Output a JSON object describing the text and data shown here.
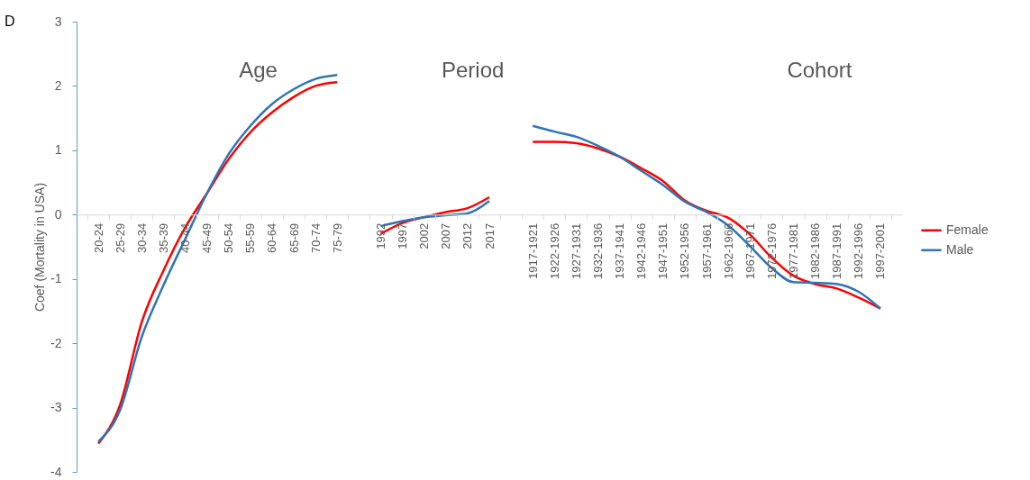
{
  "chart_data": {
    "type": "line",
    "ylabel": "Coef (Mortality in USA)",
    "categories": [
      "20-24",
      "25-29",
      "30-34",
      "35-39",
      "40-44",
      "45-49",
      "50-54",
      "55-59",
      "60-64",
      "65-69",
      "70-74",
      "75-79",
      null,
      "1992",
      "1997",
      "2002",
      "2007",
      "2012",
      "2017",
      null,
      "1917-1921",
      "1922-1926",
      "1927-1931",
      "1932-1936",
      "1937-1941",
      "1942-1946",
      "1947-1951",
      "1952-1956",
      "1957-1961",
      "1962-1966",
      "1967-1971",
      "1972-1976",
      "1977-1981",
      "1982-1986",
      "1987-1991",
      "1992-1996",
      "1997-2001"
    ],
    "series": [
      {
        "name": "Female",
        "color": "#ff0000",
        "values": [
          -3.56,
          -2.96,
          -1.67,
          -0.87,
          -0.2,
          0.33,
          0.86,
          1.28,
          1.59,
          1.83,
          2.0,
          2.06,
          null,
          -0.3,
          -0.13,
          -0.04,
          0.04,
          0.1,
          0.27,
          null,
          1.13,
          1.13,
          1.11,
          1.03,
          0.9,
          0.72,
          0.52,
          0.22,
          0.06,
          -0.05,
          -0.31,
          -0.67,
          -0.95,
          -1.08,
          -1.15,
          -1.29,
          -1.46
        ]
      },
      {
        "name": "Male",
        "color": "#2e75b6",
        "values": [
          -3.53,
          -3.04,
          -1.9,
          -1.1,
          -0.38,
          0.33,
          0.94,
          1.38,
          1.72,
          1.95,
          2.11,
          2.17,
          null,
          -0.18,
          -0.1,
          -0.04,
          -0.01,
          0.02,
          0.21,
          null,
          1.38,
          1.29,
          1.21,
          1.07,
          0.9,
          0.68,
          0.46,
          0.2,
          0.04,
          -0.17,
          -0.49,
          -0.83,
          -1.05,
          -1.06,
          -1.08,
          -1.2,
          -1.46
        ]
      }
    ],
    "ylim": [
      -4,
      3
    ],
    "yticks": [
      -4,
      -3,
      -2,
      -1,
      0,
      1,
      2,
      3
    ],
    "grid": false,
    "legend": "right",
    "marker": "none",
    "line_style": "solid",
    "annotations": [
      "D",
      "Age",
      "Period",
      "Cohort"
    ]
  }
}
